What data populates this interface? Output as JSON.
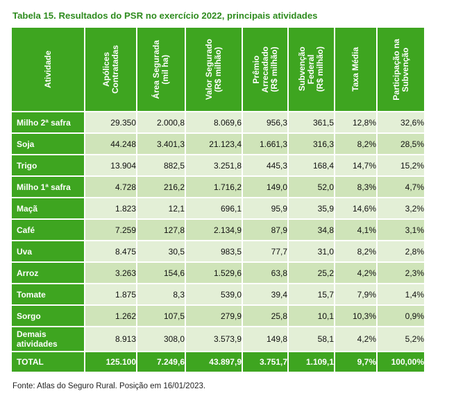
{
  "title": "Tabela 15. Resultados do PSR no exercício 2022, principais atividades",
  "columns": [
    "Atividade",
    "Apólices\nContratadas",
    "Área Segurada\n(mil ha)",
    "Valor Segurado\n(R$ milhão)",
    "Prêmio\nArrecadado\n(R$ milhão)",
    "Subvenção\nFederal\n(R$ milhão)",
    "Taxa Média",
    "Participação na\nSubvenção"
  ],
  "rows": [
    [
      "Milho 2ª safra",
      "29.350",
      "2.000,8",
      "8.069,6",
      "956,3",
      "361,5",
      "12,8%",
      "32,6%"
    ],
    [
      "Soja",
      "44.248",
      "3.401,3",
      "21.123,4",
      "1.661,3",
      "316,3",
      "8,2%",
      "28,5%"
    ],
    [
      "Trigo",
      "13.904",
      "882,5",
      "3.251,8",
      "445,3",
      "168,4",
      "14,7%",
      "15,2%"
    ],
    [
      "Milho 1ª safra",
      "4.728",
      "216,2",
      "1.716,2",
      "149,0",
      "52,0",
      "8,3%",
      "4,7%"
    ],
    [
      "Maçã",
      "1.823",
      "12,1",
      "696,1",
      "95,9",
      "35,9",
      "14,6%",
      "3,2%"
    ],
    [
      "Café",
      "7.259",
      "127,8",
      "2.134,9",
      "87,9",
      "34,8",
      "4,1%",
      "3,1%"
    ],
    [
      "Uva",
      "8.475",
      "30,5",
      "983,5",
      "77,7",
      "31,0",
      "8,2%",
      "2,8%"
    ],
    [
      "Arroz",
      "3.263",
      "154,6",
      "1.529,6",
      "63,8",
      "25,2",
      "4,2%",
      "2,3%"
    ],
    [
      "Tomate",
      "1.875",
      "8,3",
      "539,0",
      "39,4",
      "15,7",
      "7,9%",
      "1,4%"
    ],
    [
      "Sorgo",
      "1.262",
      "107,5",
      "279,9",
      "25,8",
      "10,1",
      "10,3%",
      "0,9%"
    ],
    [
      "Demais atividades",
      "8.913",
      "308,0",
      "3.573,9",
      "149,8",
      "58,1",
      "4,2%",
      "5,2%"
    ]
  ],
  "total": [
    "TOTAL",
    "125.100",
    "7.249,6",
    "43.897,9",
    "3.751,7",
    "1.109,1",
    "9,7%",
    "100,00%"
  ],
  "footnote": "Fonte: Atlas do Seguro Rural. Posição em 16/01/2023.",
  "colors": {
    "header_green": "#3ea520",
    "row_light": "#e3efd6",
    "row_dark": "#cfe4b9",
    "title_green": "#2e8b1e"
  }
}
